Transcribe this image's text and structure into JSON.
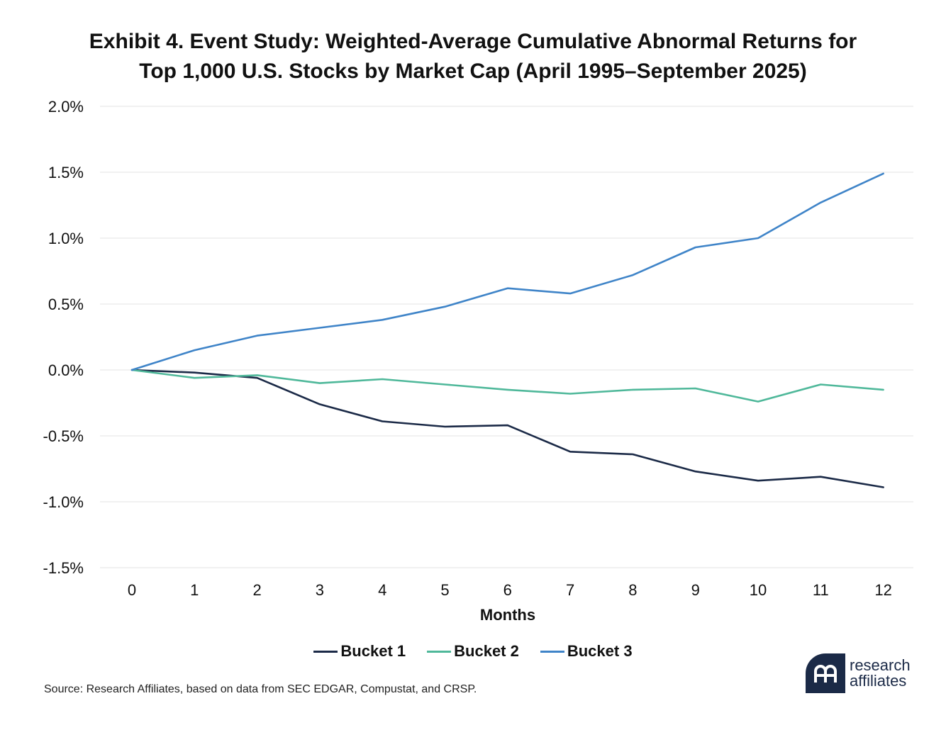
{
  "title_line1": "Exhibit 4. Event Study: Weighted-Average Cumulative Abnormal Returns for",
  "title_line2": "Top 1,000 U.S. Stocks by Market Cap (April 1995–September 2025)",
  "source": "Source: Research Affiliates, based on data from SEC EDGAR, Compustat, and CRSP.",
  "logo": {
    "line1": "research",
    "line2": "affiliates"
  },
  "chart_data": {
    "type": "line",
    "xlabel": "Months",
    "ylabel": "",
    "x": [
      0,
      1,
      2,
      3,
      4,
      5,
      6,
      7,
      8,
      9,
      10,
      11,
      12
    ],
    "ylim": [
      -1.5,
      2.0
    ],
    "yticks": [
      "2.0%",
      "1.5%",
      "1.0%",
      "0.5%",
      "0.0%",
      "-0.5%",
      "-1.0%",
      "-1.5%"
    ],
    "ytick_values": [
      2.0,
      1.5,
      1.0,
      0.5,
      0.0,
      -0.5,
      -1.0,
      -1.5
    ],
    "grid": true,
    "legend": "bottom",
    "series": [
      {
        "name": "Bucket 1",
        "color": "#1b2a47",
        "values": [
          0.0,
          -0.02,
          -0.06,
          -0.26,
          -0.39,
          -0.43,
          -0.42,
          -0.62,
          -0.64,
          -0.77,
          -0.84,
          -0.81,
          -0.89
        ]
      },
      {
        "name": "Bucket 2",
        "color": "#4fb89a",
        "values": [
          0.0,
          -0.06,
          -0.04,
          -0.1,
          -0.07,
          -0.11,
          -0.15,
          -0.18,
          -0.15,
          -0.14,
          -0.24,
          -0.11,
          -0.15
        ]
      },
      {
        "name": "Bucket 3",
        "color": "#3f84c8",
        "values": [
          0.0,
          0.15,
          0.26,
          0.32,
          0.38,
          0.48,
          0.62,
          0.58,
          0.72,
          0.93,
          1.0,
          1.27,
          1.49
        ]
      }
    ]
  }
}
